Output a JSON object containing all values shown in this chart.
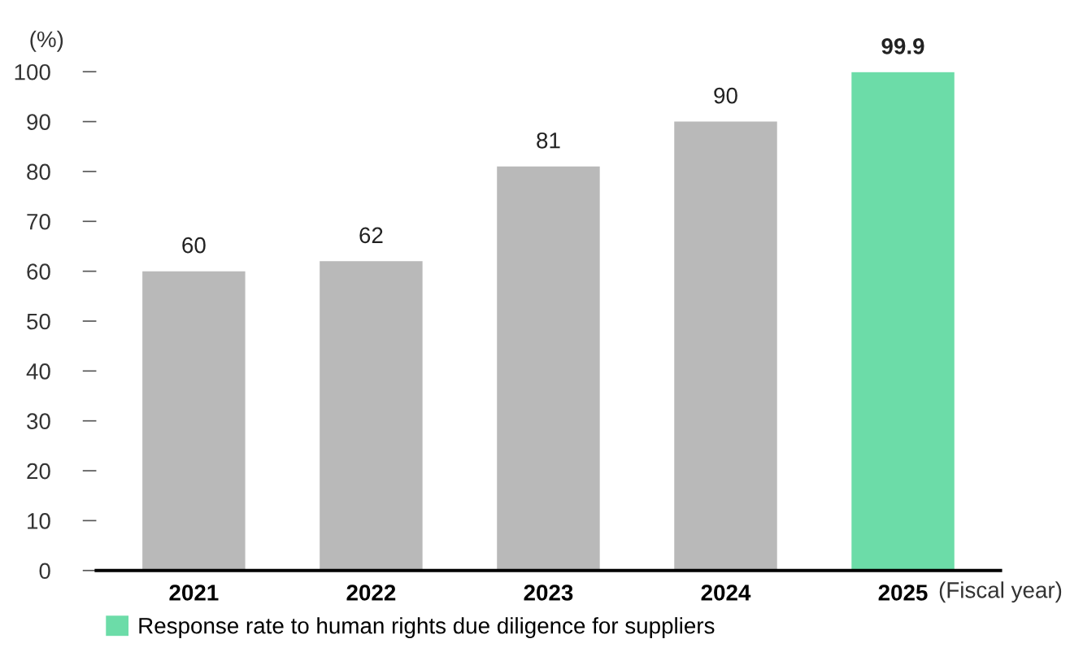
{
  "chart_data": {
    "type": "bar",
    "ylabel": "(%)",
    "xlabel": "(Fiscal year)",
    "categories": [
      "2021",
      "2022",
      "2023",
      "2024",
      "2025"
    ],
    "series": [
      {
        "name": "Response rate to human rights due diligence for suppliers",
        "color": "#6cdca8",
        "colors": [
          "#b9b9b9",
          "#b9b9b9",
          "#b9b9b9",
          "#b9b9b9",
          "#6cdca8"
        ],
        "values": [
          60,
          62,
          81,
          90,
          99.9
        ]
      }
    ],
    "ylim": [
      0,
      100
    ],
    "yticks": [
      0,
      10,
      20,
      30,
      40,
      50,
      60,
      70,
      80,
      90,
      100
    ],
    "data_labels": true,
    "grid": false,
    "legend": "bottom left"
  }
}
